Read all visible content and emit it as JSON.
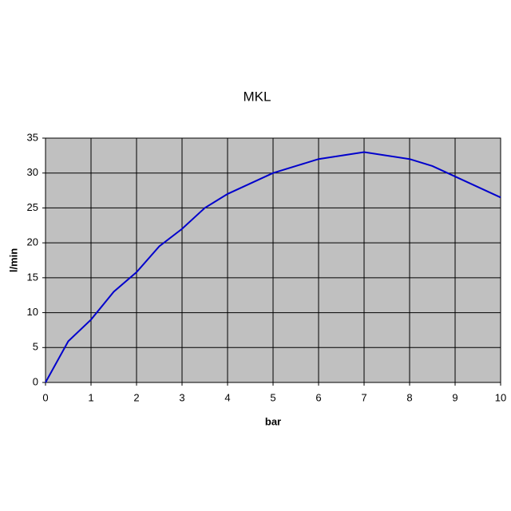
{
  "chart_data": {
    "type": "line",
    "title": "MKL",
    "x_label": "bar",
    "y_label": "l/min",
    "x": [
      0,
      0.5,
      1,
      1.5,
      2,
      2.5,
      3,
      3.5,
      4,
      5,
      5.5,
      6,
      7,
      8,
      8.5,
      9,
      10
    ],
    "series": [
      {
        "name": "MKL",
        "color": "#0000cc",
        "values": [
          0,
          5.9,
          9,
          13,
          15.8,
          19.5,
          22,
          25,
          27,
          30,
          31,
          32,
          33,
          32,
          31,
          29.5,
          26.5
        ]
      }
    ],
    "xlim": [
      0,
      10
    ],
    "xticks": [
      0,
      1,
      2,
      3,
      4,
      5,
      6,
      7,
      8,
      9,
      10
    ],
    "ylim": [
      0,
      35
    ],
    "yticks": [
      0,
      5,
      10,
      15,
      20,
      25,
      30,
      35
    ],
    "grid": true,
    "plot_background": "#c0c0c0"
  }
}
